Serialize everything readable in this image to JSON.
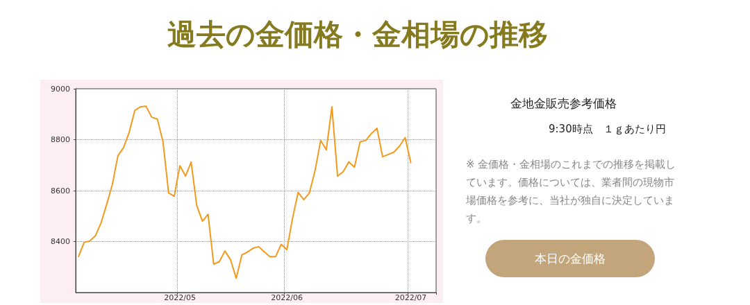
{
  "chart_data": {
    "type": "line",
    "title": "過去の金価格・金相場の推移",
    "subtitle": "金地金販売参考価格",
    "annotations": [
      "9:30時点　１ｇあたり円",
      "※ 金価格・金相場のこれまでの推移を掲載しています。価格については、業者間の現物市場価格を参考に、当社が独自に決定しています。",
      "本日の金価格"
    ],
    "categories": [
      null,
      null,
      null,
      null,
      null,
      null,
      null,
      null,
      null,
      null,
      null,
      null,
      null,
      null,
      null,
      null,
      null,
      null,
      "2022/05",
      null,
      null,
      null,
      null,
      null,
      null,
      null,
      null,
      null,
      null,
      null,
      null,
      null,
      null,
      null,
      null,
      null,
      null,
      "2022/06",
      null,
      null,
      null,
      null,
      null,
      null,
      null,
      null,
      null,
      null,
      null,
      null,
      null,
      null,
      null,
      null,
      null,
      null,
      null,
      null,
      null,
      "2022/07",
      null,
      null,
      null,
      null
    ],
    "series": [
      {
        "color": "#f39a1e",
        "values": [
          8341,
          8397,
          8402,
          8423,
          8473,
          8546,
          8623,
          8737,
          8769,
          8829,
          8915,
          8929,
          8931,
          8888,
          8881,
          8792,
          8591,
          8578,
          8698,
          8657,
          8712,
          8541,
          8480,
          8507,
          8311,
          8321,
          8363,
          8329,
          8256,
          8347,
          8359,
          8374,
          8380,
          8359,
          8341,
          8341,
          8389,
          8368,
          8491,
          8593,
          8564,
          8591,
          8678,
          8797,
          8760,
          8929,
          8657,
          8674,
          8713,
          8692,
          8792,
          8797,
          8824,
          8845,
          8733,
          8742,
          8751,
          8775,
          8808,
          8710,
          null,
          null,
          null,
          null
        ]
      }
    ],
    "ylim": [
      8200,
      9000
    ],
    "yticks": [
      8400,
      8600,
      8800,
      9000
    ],
    "grid": true,
    "marker": "none",
    "line_style": "solid"
  }
}
